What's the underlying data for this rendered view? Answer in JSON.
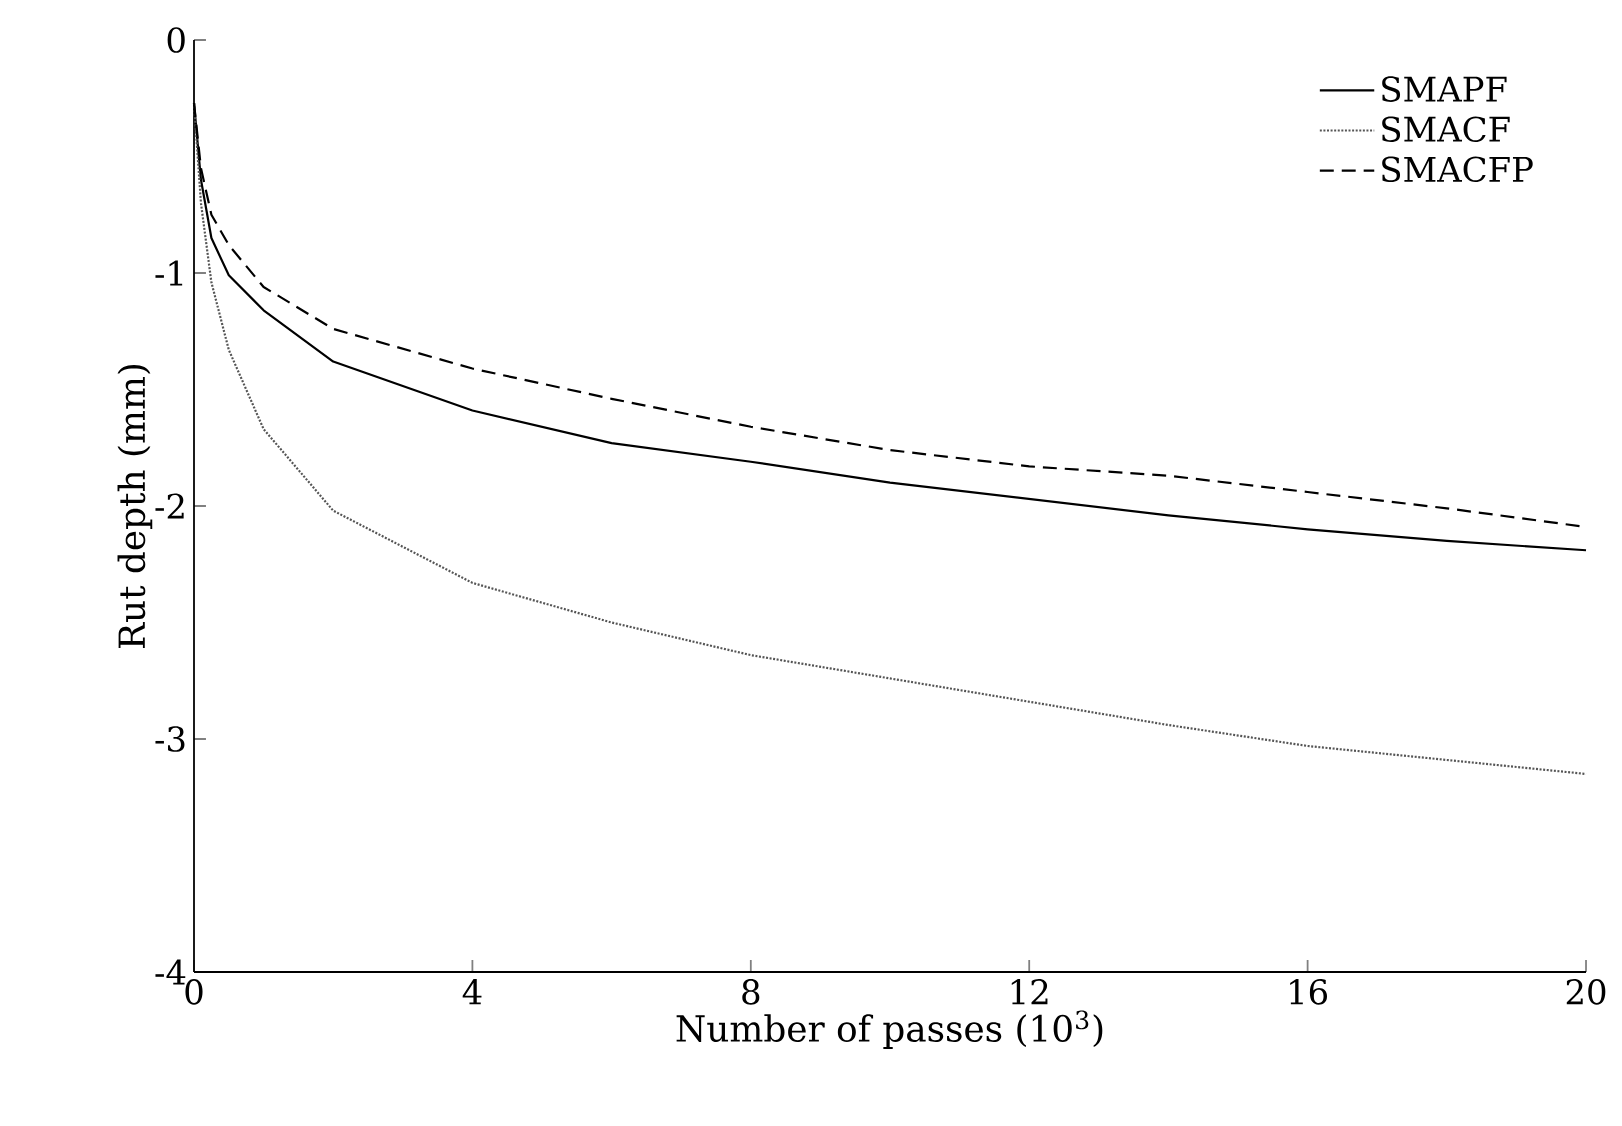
{
  "chart_data": {
    "type": "line",
    "xlabel": "Number of passes (10$^{3}$)",
    "ylabel": "Rut depth (mm)",
    "xlim": [
      0,
      20
    ],
    "ylim": [
      -4,
      0
    ],
    "xticks": [
      0,
      4,
      8,
      12,
      16,
      20
    ],
    "yticks": [
      -4,
      -3,
      -2,
      -1,
      0
    ],
    "grid": false,
    "legend": "top right",
    "series": [
      {
        "name": "SMAPF",
        "color": "#000000",
        "line_style": "solid",
        "x": [
          0,
          0.1,
          0.25,
          0.5,
          1,
          2,
          4,
          6,
          8,
          10,
          12,
          14,
          16,
          18,
          20
        ],
        "values": [
          -0.27,
          -0.6,
          -0.85,
          -1.01,
          -1.16,
          -1.38,
          -1.59,
          -1.73,
          -1.81,
          -1.9,
          -1.97,
          -2.04,
          -2.1,
          -2.15,
          -2.19
        ]
      },
      {
        "name": "SMACF",
        "color": "#555555",
        "line_style": "dotted",
        "x": [
          0,
          0.1,
          0.25,
          0.5,
          1,
          2,
          4,
          6,
          8,
          10,
          12,
          14,
          16,
          18,
          20
        ],
        "values": [
          -0.27,
          -0.7,
          -1.04,
          -1.33,
          -1.67,
          -2.02,
          -2.33,
          -2.5,
          -2.64,
          -2.74,
          -2.84,
          -2.94,
          -3.03,
          -3.09,
          -3.15
        ]
      },
      {
        "name": "SMACFP",
        "color": "#000000",
        "line_style": "dashed",
        "x": [
          0,
          0.1,
          0.25,
          0.5,
          1,
          2,
          4,
          6,
          8,
          10,
          12,
          14,
          16,
          18,
          20
        ],
        "values": [
          -0.27,
          -0.55,
          -0.75,
          -0.88,
          -1.06,
          -1.24,
          -1.41,
          -1.54,
          -1.66,
          -1.76,
          -1.83,
          -1.87,
          -1.94,
          -2.01,
          -2.09
        ]
      }
    ]
  }
}
